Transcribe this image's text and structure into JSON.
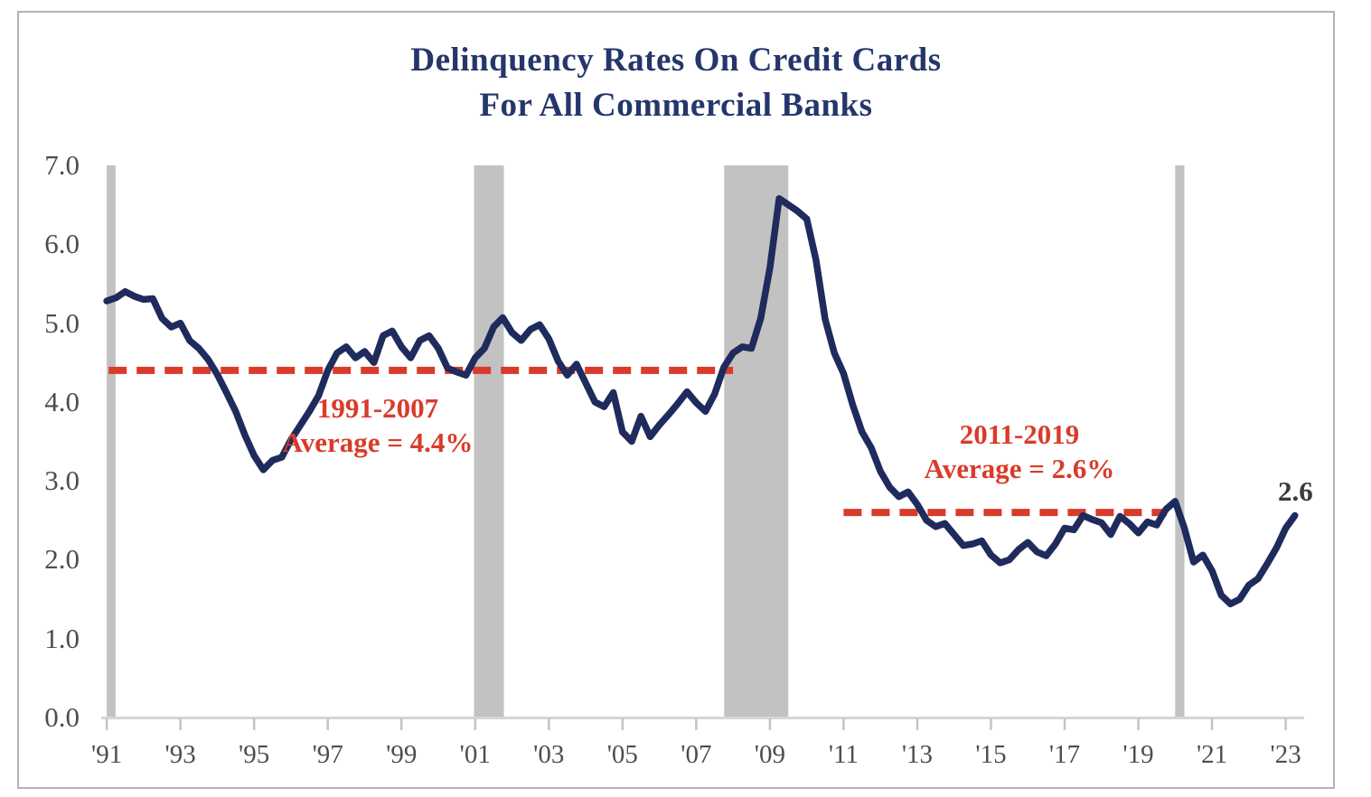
{
  "title": {
    "line1": "Delinquency Rates On Credit Cards",
    "line2": "For All Commercial Banks"
  },
  "annotations": {
    "avg1": {
      "line1": "1991-2007",
      "line2": "Average = 4.4%"
    },
    "avg2": {
      "line1": "2011-2019",
      "line2": "Average = 2.6%"
    },
    "end_label": "2.6"
  },
  "colors": {
    "line": "#1e2b5c",
    "dashed_average": "#d93b2b",
    "recession_band": "#c2c2c2",
    "title_text": "#24366b",
    "axis_line": "#d6d6d6",
    "tick_mark": "#c4c4c4",
    "axis_text": "#4d4d4d",
    "end_label_text": "#3b3b3b"
  },
  "chart_data": {
    "type": "line",
    "title": "Delinquency Rates On Credit Cards For All Commercial Banks",
    "ylabel": "",
    "xlabel": "",
    "ylim": [
      0.0,
      7.0
    ],
    "xlim": [
      1990.85,
      2023.5
    ],
    "grid": false,
    "y_ticks": [
      "7.0",
      "6.0",
      "5.0",
      "4.0",
      "3.0",
      "2.0",
      "1.0",
      "0.0"
    ],
    "x_ticks": [
      {
        "label": "'91",
        "year": 1991
      },
      {
        "label": "'93",
        "year": 1993
      },
      {
        "label": "'95",
        "year": 1995
      },
      {
        "label": "'97",
        "year": 1997
      },
      {
        "label": "'99",
        "year": 1999
      },
      {
        "label": "'01",
        "year": 2001
      },
      {
        "label": "'03",
        "year": 2003
      },
      {
        "label": "'05",
        "year": 2005
      },
      {
        "label": "'07",
        "year": 2007
      },
      {
        "label": "'09",
        "year": 2009
      },
      {
        "label": "'11",
        "year": 2011
      },
      {
        "label": "'13",
        "year": 2013
      },
      {
        "label": "'15",
        "year": 2015
      },
      {
        "label": "'17",
        "year": 2017
      },
      {
        "label": "'19",
        "year": 2019
      },
      {
        "label": "'21",
        "year": 2021
      },
      {
        "label": "'23",
        "year": 2023
      }
    ],
    "x_start": 1991.0,
    "x_step": 0.25,
    "values": [
      5.28,
      5.32,
      5.4,
      5.34,
      5.3,
      5.31,
      5.06,
      4.95,
      5.0,
      4.78,
      4.68,
      4.54,
      4.35,
      4.12,
      3.88,
      3.58,
      3.32,
      3.14,
      3.26,
      3.3,
      3.52,
      3.7,
      3.88,
      4.08,
      4.4,
      4.62,
      4.7,
      4.56,
      4.64,
      4.5,
      4.84,
      4.9,
      4.7,
      4.56,
      4.78,
      4.84,
      4.68,
      4.43,
      4.38,
      4.34,
      4.56,
      4.68,
      4.95,
      5.07,
      4.88,
      4.78,
      4.92,
      4.98,
      4.8,
      4.52,
      4.34,
      4.48,
      4.24,
      4.0,
      3.94,
      4.12,
      3.62,
      3.5,
      3.82,
      3.56,
      3.71,
      3.84,
      3.98,
      4.13,
      3.99,
      3.88,
      4.1,
      4.44,
      4.62,
      4.7,
      4.68,
      5.06,
      5.7,
      6.58,
      6.5,
      6.42,
      6.32,
      5.8,
      5.05,
      4.62,
      4.36,
      3.96,
      3.62,
      3.42,
      3.12,
      2.92,
      2.8,
      2.86,
      2.7,
      2.5,
      2.42,
      2.46,
      2.32,
      2.18,
      2.2,
      2.24,
      2.06,
      1.96,
      2.0,
      2.13,
      2.22,
      2.1,
      2.05,
      2.2,
      2.4,
      2.38,
      2.56,
      2.51,
      2.47,
      2.32,
      2.55,
      2.46,
      2.34,
      2.48,
      2.44,
      2.64,
      2.74,
      2.4,
      1.97,
      2.06,
      1.86,
      1.55,
      1.44,
      1.5,
      1.68,
      1.76,
      1.95,
      2.15,
      2.4,
      2.56
    ],
    "recessions": [
      {
        "start": 1991.0,
        "end": 1991.24
      },
      {
        "start": 2000.97,
        "end": 2001.78
      },
      {
        "start": 2007.76,
        "end": 2009.5
      },
      {
        "start": 2020.0,
        "end": 2020.25
      }
    ],
    "avg_lines": [
      {
        "label": "1991-2007 Average",
        "value": 4.4,
        "from": 1991.05,
        "to": 2008.0
      },
      {
        "label": "2011-2019 Average",
        "value": 2.6,
        "from": 2011.0,
        "to": 2019.77
      }
    ],
    "end_value_label": "2.6",
    "legend": "none"
  }
}
